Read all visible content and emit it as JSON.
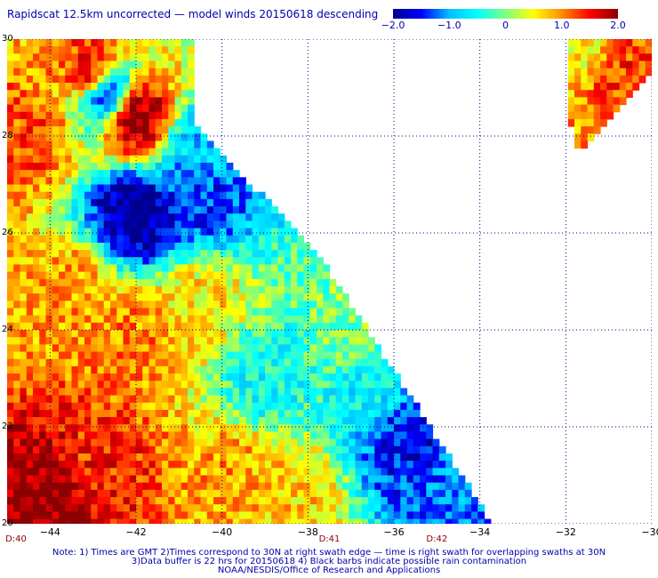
{
  "title": "Rapidscat 12.5km uncorrected — model winds 20150618 descending",
  "colorbar": {
    "ticks": [
      "−2.0",
      "−1.0",
      "0",
      "1.0",
      "2.0"
    ],
    "tick_values": [
      -2.0,
      -1.0,
      0,
      1.0,
      2.0
    ],
    "range": [
      -2.0,
      2.0
    ],
    "colors": [
      "#00008b",
      "#0000ff",
      "#00bfff",
      "#00ffff",
      "#7fff7f",
      "#ffff00",
      "#ff8c00",
      "#ff0000",
      "#8b0000"
    ]
  },
  "y_labels": [
    "30",
    "28",
    "26",
    "24",
    "22",
    "20"
  ],
  "x_labels": [
    "−44",
    "−42",
    "−40",
    "−38",
    "−36",
    "−34",
    "−32",
    "−30"
  ],
  "times": [
    "D:40",
    "D:41",
    "D:42"
  ],
  "notes": [
    "Note: 1) Times are GMT 2)Times correspond to 30N at right swath edge — time is right swath for overlapping swaths at 30N",
    "3)Data buffer is 22 hrs for 20150618 4) Black barbs indicate possible rain contamination",
    "NOAA/NESDIS/Office of Research and Applications"
  ],
  "chart_data": {
    "type": "heatmap",
    "title": "Rapidscat 12.5km uncorrected — model winds 20150618 descending",
    "xlim": [
      -45,
      -30
    ],
    "ylim": [
      20,
      30
    ],
    "x_ticks": [
      -44,
      -42,
      -40,
      -38,
      -36,
      -34,
      -32,
      -30
    ],
    "y_ticks": [
      20,
      22,
      24,
      26,
      28,
      30
    ],
    "value_range": [
      -2.0,
      2.0
    ],
    "grid": true,
    "swath_time_labels": [
      {
        "text": "D:40",
        "lon": -45
      },
      {
        "text": "D:41",
        "lon": -37.5
      },
      {
        "text": "D:42",
        "lon": -35
      }
    ],
    "regions": [
      {
        "lon": -42.0,
        "lat": 28.4,
        "value": 2.0
      },
      {
        "lon": -43.0,
        "lat": 29.3,
        "value": 1.6
      },
      {
        "lon": -44.5,
        "lat": 28.0,
        "value": 1.2
      },
      {
        "lon": -42.0,
        "lat": 26.4,
        "value": -2.0
      },
      {
        "lon": -40.5,
        "lat": 26.8,
        "value": -1.4
      },
      {
        "lon": -42.7,
        "lat": 28.9,
        "value": -1.5
      },
      {
        "lon": -40.5,
        "lat": 27.8,
        "value": -0.8
      },
      {
        "lon": -43.5,
        "lat": 24.8,
        "value": 0.9
      },
      {
        "lon": -42.0,
        "lat": 23.8,
        "value": 1.0
      },
      {
        "lon": -40.5,
        "lat": 24.5,
        "value": 0.6
      },
      {
        "lon": -39.0,
        "lat": 23.0,
        "value": -0.5
      },
      {
        "lon": -37.0,
        "lat": 24.0,
        "value": 0.0
      },
      {
        "lon": -44.0,
        "lat": 20.6,
        "value": 2.0
      },
      {
        "lon": -43.0,
        "lat": 21.2,
        "value": 1.4
      },
      {
        "lon": -39.8,
        "lat": 21.0,
        "value": 0.9
      },
      {
        "lon": -38.5,
        "lat": 20.6,
        "value": 0.7
      },
      {
        "lon": -35.6,
        "lat": 21.8,
        "value": -1.6
      },
      {
        "lon": -34.3,
        "lat": 21.2,
        "value": -1.1
      },
      {
        "lon": -36.5,
        "lat": 22.8,
        "value": -0.6
      },
      {
        "lon": -30.8,
        "lat": 29.4,
        "value": 1.3
      },
      {
        "lon": -31.5,
        "lat": 29.8,
        "value": 0.5
      }
    ]
  }
}
